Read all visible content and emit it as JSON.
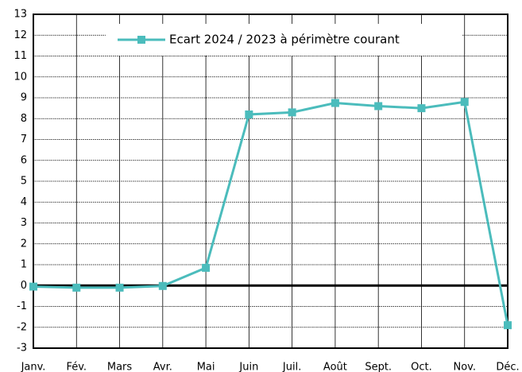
{
  "chart_data": {
    "type": "line",
    "categories": [
      "Janv.",
      "Fév.",
      "Mars",
      "Avr.",
      "Mai",
      "Juin",
      "Juil.",
      "Août",
      "Sept.",
      "Oct.",
      "Nov.",
      "Déc."
    ],
    "series": [
      {
        "name": "Ecart 2024 / 2023 à périmètre courant",
        "color": "#4bbcbc",
        "values": [
          -0.05,
          -0.1,
          -0.1,
          -0.02,
          0.85,
          8.2,
          8.3,
          8.75,
          8.6,
          8.5,
          8.8,
          -1.9
        ]
      }
    ],
    "ylim": [
      -3,
      13
    ],
    "yticks": [
      -3,
      -2,
      -1,
      0,
      1,
      2,
      3,
      4,
      5,
      6,
      7,
      8,
      9,
      10,
      11,
      12,
      13
    ],
    "grid": true,
    "legend": "top"
  }
}
